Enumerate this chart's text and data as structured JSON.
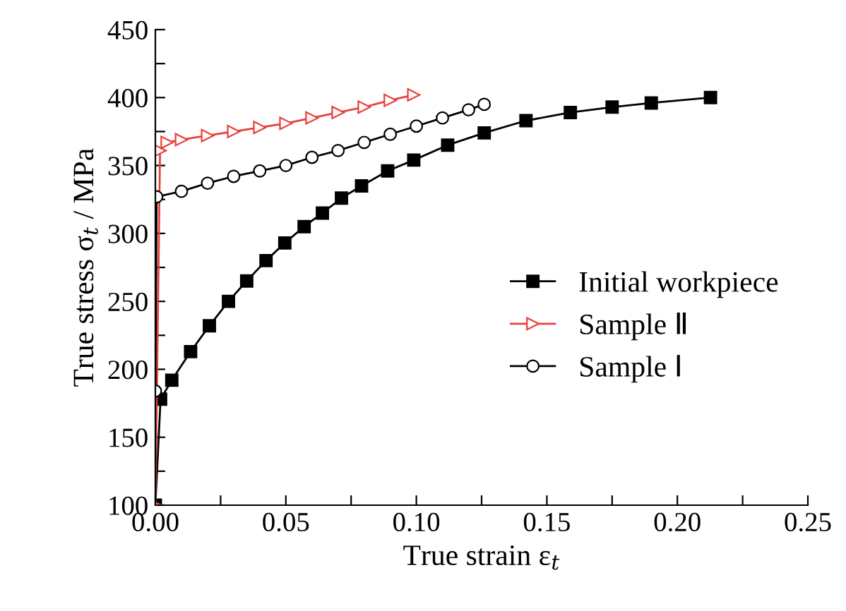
{
  "chart_data": {
    "type": "line",
    "xlabel": "True strain ε$_{t}$",
    "ylabel": "True stress σ$_{t}$ / MPa",
    "xlim": [
      0,
      0.25
    ],
    "ylim": [
      100,
      450
    ],
    "xticks": [
      {
        "value": 0,
        "label": "0.00"
      },
      {
        "value": 0.025,
        "label": null
      },
      {
        "value": 0.05,
        "label": "0.05"
      },
      {
        "value": 0.075,
        "label": null
      },
      {
        "value": 0.1,
        "label": "0.10"
      },
      {
        "value": 0.125,
        "label": null
      },
      {
        "value": 0.15,
        "label": "0.15"
      },
      {
        "value": 0.175,
        "label": null
      },
      {
        "value": 0.2,
        "label": "0.20"
      },
      {
        "value": 0.225,
        "label": null
      },
      {
        "value": 0.25,
        "label": "0.25"
      }
    ],
    "yticks": [
      100,
      {
        "value": 125,
        "label": null
      },
      150,
      {
        "value": 175,
        "label": null
      },
      200,
      {
        "value": 225,
        "label": null
      },
      250,
      {
        "value": 275,
        "label": null
      },
      300,
      {
        "value": 325,
        "label": null
      },
      350,
      {
        "value": 375,
        "label": null
      },
      400,
      {
        "value": 425,
        "label": null
      },
      450
    ],
    "legend": "center",
    "grid": false,
    "series": [
      {
        "name": "Initial workpiece",
        "color": "#000000",
        "marker": "square",
        "x": [
          0,
          0.002,
          0.0063,
          0.0135,
          0.0207,
          0.028,
          0.035,
          0.0424,
          0.0496,
          0.057,
          0.064,
          0.0713,
          0.079,
          0.089,
          0.099,
          0.112,
          0.126,
          0.142,
          0.159,
          0.175,
          0.19,
          0.2127
        ],
        "values": [
          100,
          178,
          192,
          213,
          232,
          250,
          265,
          280,
          293,
          305,
          315,
          326,
          335,
          346,
          354,
          365,
          374,
          383,
          389,
          393,
          396,
          400
        ]
      },
      {
        "name": "Sample Ⅱ",
        "color": "#e8403a",
        "marker": "triangle",
        "x": [
          0,
          0.0018,
          0.0045,
          0.01,
          0.02,
          0.03,
          0.04,
          0.05,
          0.06,
          0.07,
          0.08,
          0.09,
          0.099
        ],
        "values": [
          100,
          361,
          367,
          369,
          372,
          375,
          378,
          381,
          385,
          389,
          393,
          398,
          402
        ]
      },
      {
        "name": "Sample Ⅰ",
        "color": "#000000",
        "marker": "circle",
        "x": [
          0,
          0.0005,
          0.01,
          0.02,
          0.03,
          0.04,
          0.05,
          0.06,
          0.07,
          0.08,
          0.09,
          0.1,
          0.11,
          0.12,
          0.126
        ],
        "values": [
          184,
          327,
          331,
          337,
          342,
          346,
          350,
          356,
          361,
          367,
          373,
          379,
          385,
          391,
          395
        ]
      }
    ]
  }
}
